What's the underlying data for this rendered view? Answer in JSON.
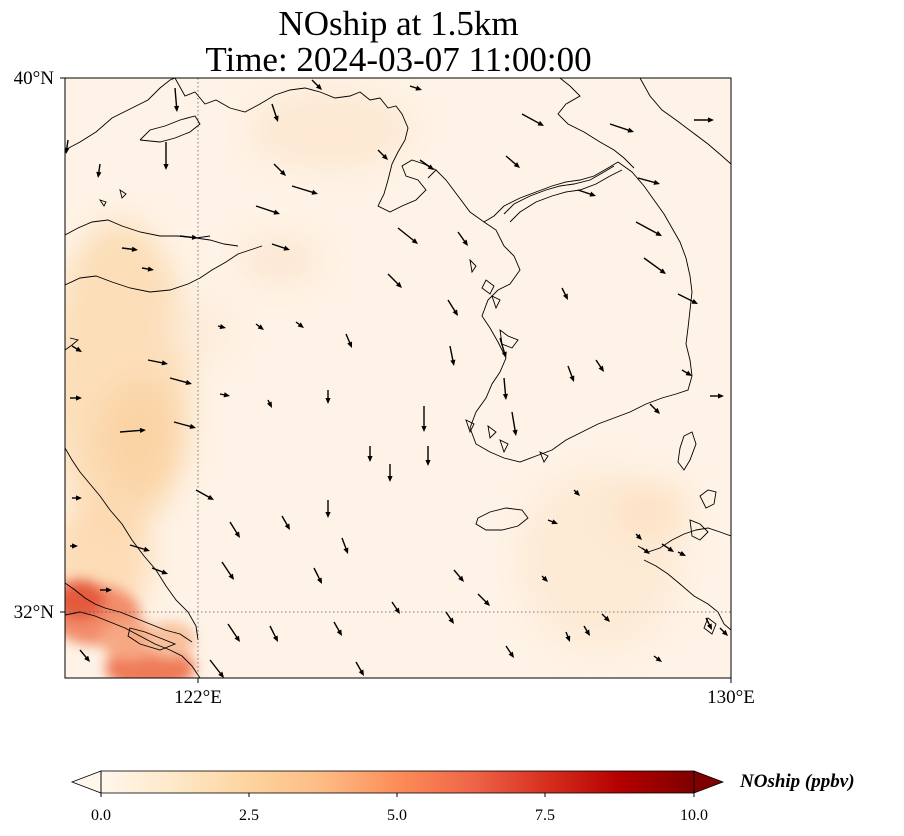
{
  "map": {
    "title_line1": "NOship at 1.5km",
    "title_line2": "Time: 2024-03-07 11:00:00",
    "lat_labels": [
      "40°N",
      "32°N"
    ],
    "lon_labels": [
      "122°E",
      "130°E"
    ],
    "extent": {
      "lon_min": 120,
      "lon_max": 130,
      "lat_min": 31,
      "lat_max": 40
    },
    "gridlines": {
      "lon": [
        122
      ],
      "lat": [
        32
      ]
    },
    "field_colors": {
      "low": "#fff5eb",
      "mid": "#fdd8a8",
      "high": "#e0533a"
    },
    "features": [
      "coastline",
      "wind-vectors",
      "gridlines"
    ]
  },
  "colorbar": {
    "label": "NOship (ppbv)",
    "ticks": [
      "0.0",
      "2.5",
      "5.0",
      "7.5",
      "10.0"
    ],
    "min": 0,
    "max": 10,
    "extend": "both",
    "colormap": "OrRd",
    "colors": [
      "#fff7ec",
      "#fee8c8",
      "#fdd49e",
      "#fdbb84",
      "#fc8d59",
      "#ef6548",
      "#d7301f",
      "#b30000",
      "#7f0000"
    ]
  }
}
